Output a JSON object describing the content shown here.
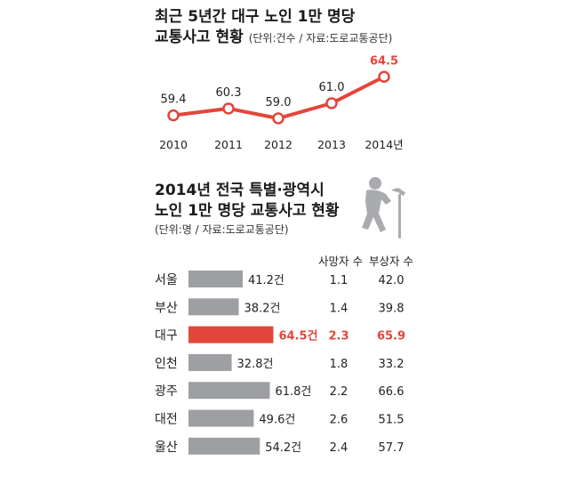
{
  "top": {
    "title_line1": "최근 5년간 대구 노인 1만 명당",
    "title_line2": "교통사고 현황",
    "unit_note": "(단위:건수 / 자료:도로교통공단)"
  },
  "bottom": {
    "title_line1": "2014년 전국 특별·광역시",
    "title_line2": "노인 1만 명당 교통사고 현황",
    "unit_note": "(단위:명 / 자료:도로교통공단)",
    "col_deaths": "사망자 수",
    "col_injuries": "부상자 수"
  },
  "colors": {
    "accent": "#e2463a",
    "bar": "#9d9fa2",
    "line_dot": "#e2463a",
    "icon": "#a9abae"
  },
  "icon": "elderly-person-walking-icon",
  "chart_data": [
    {
      "type": "line",
      "title": "최근 5년간 대구 노인 1만 명당 교통사고 현황",
      "x": [
        "2010",
        "2011",
        "2012",
        "2013",
        "2014년"
      ],
      "values": [
        59.4,
        60.3,
        59.0,
        61.0,
        64.5
      ],
      "value_labels": [
        "59.4",
        "60.3",
        "59.0",
        "61.0",
        "64.5"
      ],
      "highlight_last": true,
      "grid": false
    },
    {
      "type": "bar",
      "orientation": "horizontal",
      "title": "2014년 전국 특별·광역시 노인 1만 명당 교통사고 현황",
      "categories": [
        "서울",
        "부산",
        "대구",
        "인천",
        "광주",
        "대전",
        "울산"
      ],
      "values": [
        41.2,
        38.2,
        64.5,
        32.8,
        61.8,
        49.6,
        54.2
      ],
      "value_labels": [
        "41.2건",
        "38.2건",
        "64.5건",
        "32.8건",
        "61.8건",
        "49.6건",
        "54.2건"
      ],
      "highlight_index": 2,
      "table": {
        "deaths": [
          "1.1",
          "1.4",
          "2.3",
          "1.8",
          "2.2",
          "2.6",
          "2.4"
        ],
        "injuries": [
          "42.0",
          "39.8",
          "65.9",
          "33.2",
          "66.6",
          "51.5",
          "57.7"
        ]
      }
    }
  ]
}
